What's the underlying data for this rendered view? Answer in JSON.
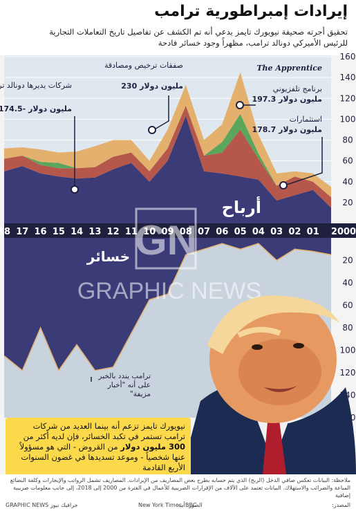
{
  "header": {
    "title": "إيرادات إمبراطورية ترامب",
    "subtitle": "تحقيق أجرته صحيفة نيويورك تايمز يدعي أنه تم الكشف عن تفاصيل تاريخ التعاملات التجارية للرئيس الأميركي دونالد ترامب، مظهراً وجود خسائر فادحة"
  },
  "chart_data": {
    "type": "area",
    "x": [
      2000,
      2001,
      2002,
      2003,
      2004,
      2005,
      2006,
      2007,
      2008,
      2009,
      2010,
      2011,
      2012,
      2013,
      2014,
      2015,
      2016,
      2017,
      2018
    ],
    "x_tick_labels": [
      "2000",
      "01",
      "02",
      "03",
      "04",
      "05",
      "06",
      "07",
      "08",
      "09",
      "10",
      "11",
      "12",
      "13",
      "14",
      "15",
      "16",
      "17",
      "18"
    ],
    "y_axis_ticks": [
      20,
      40,
      60,
      80,
      100,
      120,
      140,
      160
    ],
    "loss_axis_ticks": [
      20,
      40,
      60,
      80,
      100,
      120,
      140,
      160
    ],
    "labels": {
      "profit": "أرباح",
      "loss": "خسائر"
    },
    "profit_series": [
      {
        "color": "#3b3b78",
        "values": [
          15,
          32,
          27,
          22,
          42,
          45,
          48,
          50,
          103,
          60,
          40,
          58,
          52,
          44,
          43,
          45,
          48,
          55,
          50
        ]
      },
      {
        "color": "#b5574a",
        "values": [
          10,
          8,
          18,
          14,
          20,
          45,
          20,
          15,
          10,
          12,
          10,
          10,
          12,
          10,
          10,
          8,
          8,
          10,
          12
        ]
      },
      {
        "color": "#5aa65a",
        "values": [
          0,
          0,
          0,
          0,
          5,
          15,
          10,
          0,
          0,
          0,
          0,
          0,
          0,
          0,
          0,
          5,
          3,
          0,
          0
        ]
      },
      {
        "color": "#e3b06e",
        "values": [
          10,
          8,
          5,
          12,
          18,
          40,
          17,
          15,
          20,
          18,
          10,
          12,
          16,
          20,
          16,
          10,
          12,
          8,
          10
        ]
      }
    ],
    "loss_values": [
      -15,
      -12,
      -10,
      -20,
      -5,
      -10,
      -5,
      -10,
      -15,
      -50,
      -55,
      -85,
      -115,
      -118,
      -95,
      -118,
      -80,
      -118,
      -105
    ]
  },
  "annotations": {
    "apprentice_show": "The Apprentice",
    "apprentice_desc": "برنامج تلفزيوني",
    "apprentice_value": "197.3 مليون دولار",
    "investments": "استثمارات",
    "investments_value": "178.7 مليون دولار",
    "licensing": "صفقات ترخيص ومصادقة",
    "licensing_value": "230 مليون دولار",
    "companies": "شركات يديرها دونالد ترامب",
    "companies_value": "174.5- مليون دولار",
    "fake_news": "ترامب يندد بالخبر على أنه \"أخبار مزيفة\"",
    "note_pre": "نيويورك تايمز تزعم أنه بينما العديد من شركات ترامب تستمر في تكبد الخسائر، فإن لديه أكثر من ",
    "note_bold": "300 مليون دولار",
    "note_post": " من القروض - التي هو مسؤولاً عنها شخصياً - وموعد تسديدها في غضون السنوات الأربع القادمة"
  },
  "watermark": {
    "logo": "GN",
    "text": "GRAPHIC NEWS"
  },
  "footer": {
    "note": "ملاحظة: البيانات تعكس صافي الدخل (الربح) الذي يتم حسابه بطرح بعض المصاريف من الإيرادات. المصاريف تشمل الرواتب والإيجارات وكلفة البضائع المباعة والضرائب والاستهلاك. البيانات تعتمد على الآلاف من الإقرارات الضريبية للأعمال في الفترة من 2000 إلى 2018، إلى جانب معلومات ضريبية إضافية",
    "source_label": "المصدر:",
    "sources": "New York Times, BBC",
    "photo": "الصور: أب",
    "credit": "GRAPHIC NEWS جرافيك نيوز"
  }
}
